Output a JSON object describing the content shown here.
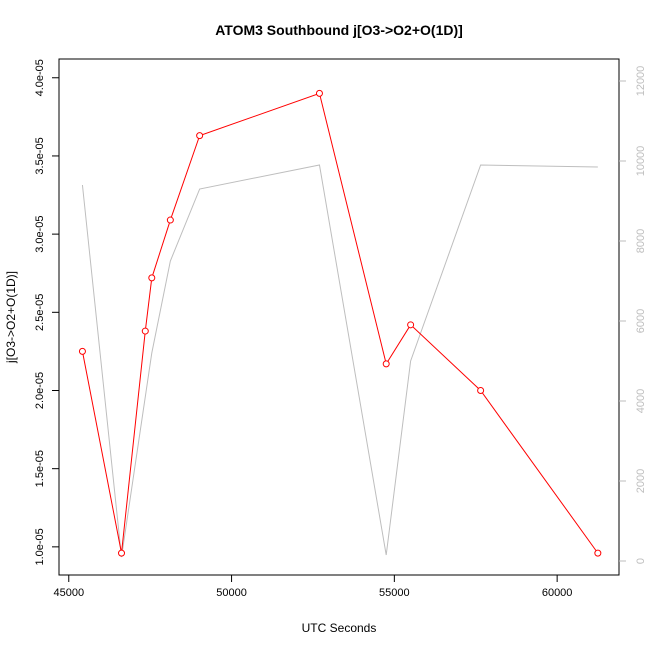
{
  "chart_data": {
    "type": "line",
    "title": "ATOM3 Southbound j[O3->O2+O(1D)]",
    "xlabel": "UTC Seconds",
    "ylabel": "j[O3->O2+O(1D)]",
    "xlim": [
      44700,
      61900
    ],
    "ylim": [
      8.2e-06,
      4.12e-05
    ],
    "y2lim": [
      -350,
      12550
    ],
    "x_ticks": [
      45000,
      50000,
      55000,
      60000
    ],
    "x_tick_labels": [
      "45000",
      "50000",
      "55000",
      "60000"
    ],
    "y_ticks": [
      1e-05,
      1.5e-05,
      2e-05,
      2.5e-05,
      3e-05,
      3.5e-05,
      4e-05
    ],
    "y_tick_labels": [
      "1.0e-05",
      "1.5e-05",
      "2.0e-05",
      "2.5e-05",
      "3.0e-05",
      "3.5e-05",
      "4.0e-05"
    ],
    "y2_ticks": [
      0,
      2000,
      4000,
      6000,
      8000,
      10000,
      12000
    ],
    "y2_tick_labels": [
      "0",
      "2000",
      "4000",
      "6000",
      "8000",
      "10000",
      "12000"
    ],
    "grid": false,
    "series": [
      {
        "axis": "left",
        "color": "#ff0000",
        "marker": "open-circle",
        "points": [
          {
            "x": 45420,
            "y": 2.25e-05
          },
          {
            "x": 46620,
            "y": 9.6e-06
          },
          {
            "x": 47350,
            "y": 2.38e-05
          },
          {
            "x": 47550,
            "y": 2.72e-05
          },
          {
            "x": 48120,
            "y": 3.09e-05
          },
          {
            "x": 49020,
            "y": 3.63e-05
          },
          {
            "x": 52700,
            "y": 3.9e-05
          },
          {
            "x": 54750,
            "y": 2.17e-05
          },
          {
            "x": 55500,
            "y": 2.42e-05
          },
          {
            "x": 57650,
            "y": 2e-05
          },
          {
            "x": 61250,
            "y": 9.6e-06
          }
        ]
      },
      {
        "axis": "right",
        "color": "#bebebe",
        "marker": "none",
        "points": [
          {
            "x": 45420,
            "y": 9400
          },
          {
            "x": 46620,
            "y": 100
          },
          {
            "x": 47550,
            "y": 5200
          },
          {
            "x": 48120,
            "y": 7500
          },
          {
            "x": 49020,
            "y": 9300
          },
          {
            "x": 52700,
            "y": 9900
          },
          {
            "x": 54750,
            "y": 150
          },
          {
            "x": 55500,
            "y": 5000
          },
          {
            "x": 57650,
            "y": 9900
          },
          {
            "x": 61250,
            "y": 9850
          }
        ]
      }
    ]
  }
}
